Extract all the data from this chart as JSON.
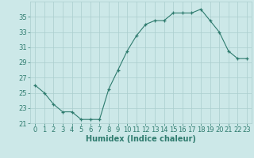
{
  "x": [
    0,
    1,
    2,
    3,
    4,
    5,
    6,
    7,
    8,
    9,
    10,
    11,
    12,
    13,
    14,
    15,
    16,
    17,
    18,
    19,
    20,
    21,
    22,
    23
  ],
  "y": [
    26,
    25,
    23.5,
    22.5,
    22.5,
    21.5,
    21.5,
    21.5,
    25.5,
    28,
    30.5,
    32.5,
    34,
    34.5,
    34.5,
    35.5,
    35.5,
    35.5,
    36,
    34.5,
    33,
    30.5,
    29.5,
    29.5
  ],
  "line_color": "#2e7b6e",
  "marker": "+",
  "marker_size": 3.5,
  "bg_color": "#cce8e8",
  "grid_color": "#aacece",
  "xlabel": "Humidex (Indice chaleur)",
  "ylabel": "",
  "xlim": [
    -0.5,
    23.5
  ],
  "ylim": [
    21,
    37
  ],
  "yticks": [
    21,
    23,
    25,
    27,
    29,
    31,
    33,
    35
  ],
  "xticks": [
    0,
    1,
    2,
    3,
    4,
    5,
    6,
    7,
    8,
    9,
    10,
    11,
    12,
    13,
    14,
    15,
    16,
    17,
    18,
    19,
    20,
    21,
    22,
    23
  ],
  "tick_color": "#2e7b6e",
  "xlabel_fontsize": 7,
  "tick_fontsize": 6
}
